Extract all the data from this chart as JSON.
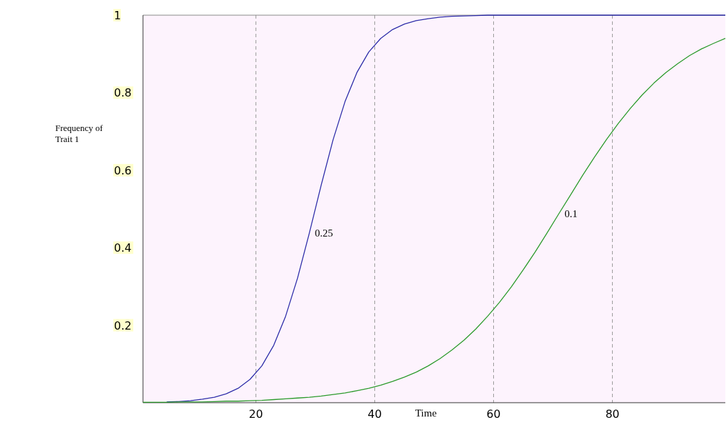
{
  "chart_data": {
    "type": "line",
    "xlabel": "Time",
    "ylabel": "Frequency of Trait 1",
    "x": [
      1,
      3,
      5,
      7,
      9,
      11,
      13,
      15,
      17,
      19,
      21,
      23,
      25,
      27,
      29,
      31,
      33,
      35,
      37,
      39,
      41,
      43,
      45,
      47,
      49,
      51,
      53,
      55,
      57,
      59,
      61,
      63,
      65,
      67,
      69,
      71,
      73,
      75,
      77,
      79,
      81,
      83,
      85,
      87,
      89,
      91,
      93,
      95,
      97,
      99
    ],
    "series": [
      {
        "name": "0.25",
        "color": "#2b2ba8",
        "values": [
          null,
          null,
          0.002,
          0.003,
          0.005,
          0.009,
          0.014,
          0.023,
          0.037,
          0.06,
          0.095,
          0.148,
          0.223,
          0.321,
          0.438,
          0.562,
          0.679,
          0.777,
          0.852,
          0.905,
          0.94,
          0.963,
          0.977,
          0.986,
          0.991,
          0.995,
          0.997,
          0.998,
          0.999,
          1,
          1,
          1,
          1,
          1,
          1,
          1,
          1,
          1,
          1,
          1,
          1,
          1,
          1,
          1,
          1,
          1,
          1,
          1,
          1,
          1
        ]
      },
      {
        "name": "0.1",
        "color": "#2a9a2a",
        "values": [
          0.001,
          0.001,
          0.001,
          0.002,
          0.002,
          0.002,
          0.003,
          0.004,
          0.004,
          0.005,
          0.006,
          0.008,
          0.01,
          0.012,
          0.014,
          0.017,
          0.021,
          0.025,
          0.031,
          0.037,
          0.045,
          0.055,
          0.066,
          0.079,
          0.095,
          0.114,
          0.136,
          0.161,
          0.19,
          0.223,
          0.259,
          0.299,
          0.343,
          0.389,
          0.438,
          0.488,
          0.537,
          0.587,
          0.634,
          0.679,
          0.721,
          0.759,
          0.794,
          0.825,
          0.852,
          0.875,
          0.896,
          0.913,
          0.927,
          0.94
        ]
      }
    ],
    "xlim": [
      1,
      99
    ],
    "ylim": [
      0,
      1
    ],
    "xticks": [
      20,
      40,
      60,
      80
    ],
    "yticks": [
      0.2,
      0.4,
      0.6,
      0.8,
      1
    ],
    "grid": "x",
    "marker": "none",
    "line_style": "solid"
  }
}
